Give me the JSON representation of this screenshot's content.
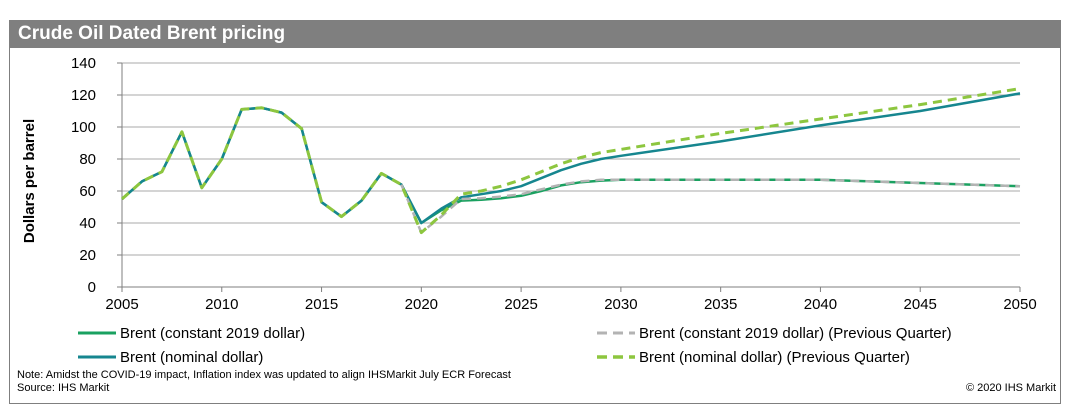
{
  "title": "Crude Oil Dated Brent pricing",
  "note": "Note: Amidst the COVID-19 impact, Inflation index was updated to align IHSMarkit July ECR Forecast",
  "source": "Source: IHS Markit",
  "copyright": "© 2020 IHS Markit",
  "chart_data": {
    "type": "line",
    "ylabel": "Dollars per barrel",
    "xlabel": "",
    "xlim": [
      2005,
      2050
    ],
    "ylim": [
      0,
      140
    ],
    "xticks": [
      "2005",
      "2010",
      "2015",
      "2020",
      "2025",
      "2030",
      "2035",
      "2040",
      "2045",
      "2050"
    ],
    "yticks": [
      "0",
      "20",
      "40",
      "60",
      "80",
      "100",
      "120",
      "140"
    ],
    "grid": "horizontal",
    "legend_position": "bottom",
    "colors": {
      "constant": "#1aa160",
      "nominal": "#16868f",
      "constant_prev": "#b3b3b3",
      "nominal_prev": "#8dc63f"
    },
    "series": [
      {
        "name": "Brent (constant 2019 dollar)",
        "key": "constant",
        "style": "solid",
        "x": [
          2005,
          2006,
          2007,
          2008,
          2009,
          2010,
          2011,
          2012,
          2013,
          2014,
          2015,
          2016,
          2017,
          2018,
          2019,
          2020,
          2021,
          2022,
          2023,
          2024,
          2025,
          2026,
          2027,
          2028,
          2029,
          2030,
          2035,
          2040,
          2045,
          2050
        ],
        "y": [
          55,
          66,
          72,
          97,
          62,
          80,
          111,
          112,
          109,
          99,
          53,
          44,
          54,
          71,
          64,
          40,
          48,
          54,
          54.5,
          55.5,
          57,
          60,
          63.5,
          65.5,
          66.5,
          67,
          67,
          67,
          65,
          63
        ]
      },
      {
        "name": "Brent (nominal dollar)",
        "key": "nominal",
        "style": "solid",
        "x": [
          2005,
          2006,
          2007,
          2008,
          2009,
          2010,
          2011,
          2012,
          2013,
          2014,
          2015,
          2016,
          2017,
          2018,
          2019,
          2020,
          2021,
          2022,
          2023,
          2024,
          2025,
          2026,
          2027,
          2028,
          2029,
          2030,
          2035,
          2040,
          2045,
          2050
        ],
        "y": [
          55,
          66,
          72,
          97,
          62,
          80,
          111,
          112,
          109,
          99,
          53,
          44,
          54,
          71,
          64,
          40,
          49,
          56,
          58,
          60,
          63,
          68,
          73,
          77,
          80,
          82,
          91,
          101,
          110,
          121
        ]
      },
      {
        "name": "Brent (constant 2019 dollar) (Previous Quarter)",
        "key": "constant_prev",
        "style": "dashed",
        "x": [
          2019,
          2020,
          2021,
          2022,
          2023,
          2024,
          2025,
          2026,
          2027,
          2028,
          2029,
          2030,
          2035,
          2040,
          2045,
          2050
        ],
        "y": [
          64,
          34,
          44,
          55,
          55.5,
          56.5,
          58,
          61,
          64,
          66,
          67,
          67,
          67,
          67,
          65,
          63
        ]
      },
      {
        "name": "Brent (nominal dollar) (Previous Quarter)",
        "key": "nominal_prev",
        "style": "dashed",
        "x": [
          2005,
          2006,
          2007,
          2008,
          2009,
          2010,
          2011,
          2012,
          2013,
          2014,
          2015,
          2016,
          2017,
          2018,
          2019,
          2020,
          2021,
          2022,
          2023,
          2024,
          2025,
          2026,
          2027,
          2028,
          2029,
          2030,
          2035,
          2040,
          2045,
          2050
        ],
        "y": [
          55,
          66,
          72,
          97,
          62,
          80,
          111,
          112,
          109,
          99,
          53,
          44,
          54,
          71,
          64,
          34,
          45,
          58,
          60,
          63,
          67,
          72,
          77,
          81,
          84,
          86,
          96,
          105,
          114,
          124
        ]
      }
    ]
  }
}
